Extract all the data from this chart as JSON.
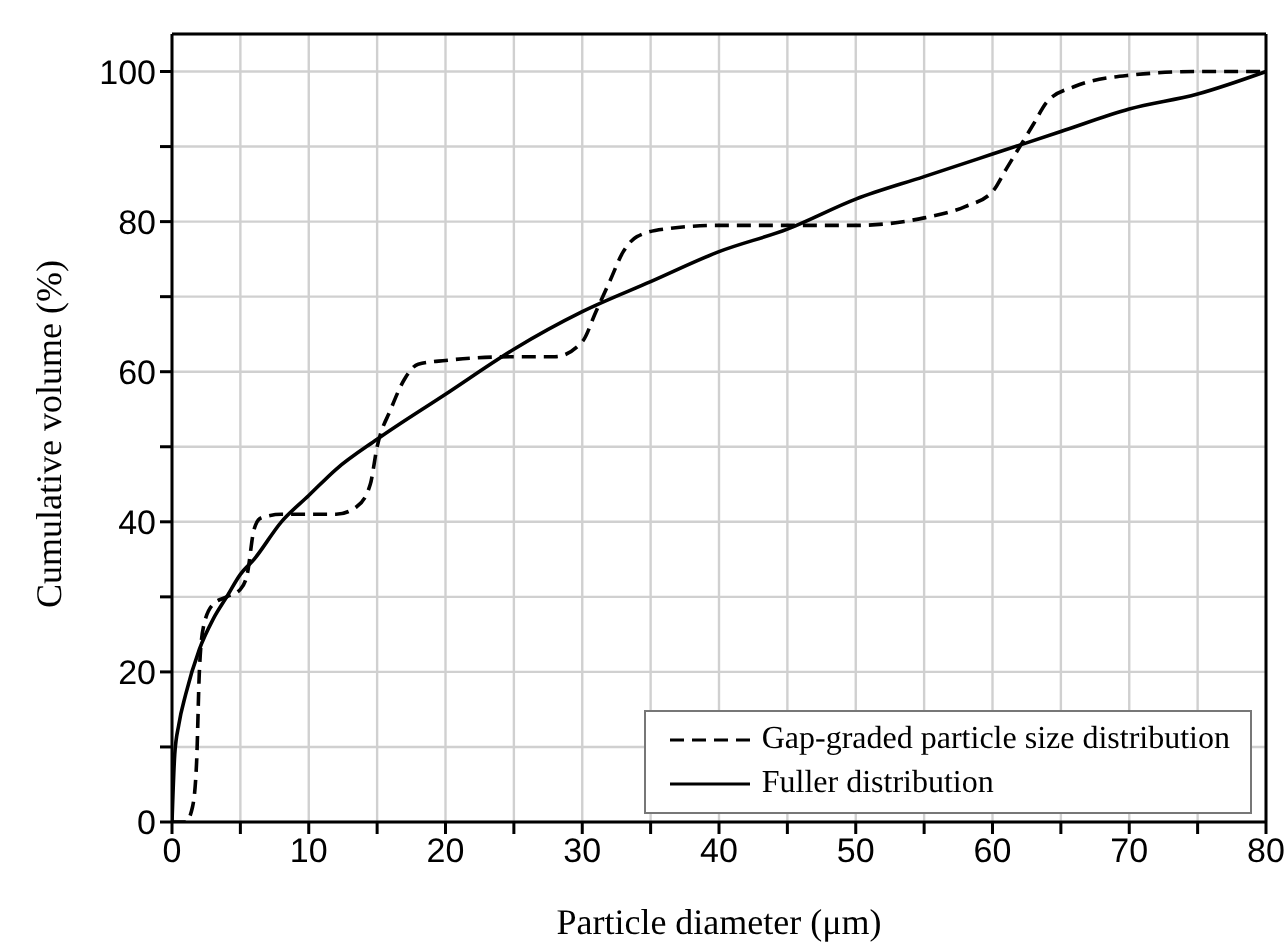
{
  "chart_data": {
    "type": "line",
    "xlabel": "Particle diameter (μm)",
    "ylabel": "Cumulative volume (%)",
    "xlim": [
      0,
      80
    ],
    "ylim": [
      0,
      105
    ],
    "xticks": [
      0,
      {
        "value": 5,
        "label": null
      },
      10,
      {
        "value": 15,
        "label": null
      },
      20,
      {
        "value": 25,
        "label": null
      },
      30,
      {
        "value": 35,
        "label": null
      },
      40,
      {
        "value": 45,
        "label": null
      },
      50,
      {
        "value": 55,
        "label": null
      },
      60,
      {
        "value": 65,
        "label": null
      },
      70,
      {
        "value": 75,
        "label": null
      },
      80
    ],
    "yticks": [
      0,
      {
        "value": 10,
        "label": null
      },
      20,
      {
        "value": 30,
        "label": null
      },
      40,
      {
        "value": 50,
        "label": null
      },
      60,
      {
        "value": 70,
        "label": null
      },
      80,
      {
        "value": 90,
        "label": null
      },
      100
    ],
    "grid": true,
    "legend": "bottom right",
    "marker": "none",
    "series": [
      {
        "name": "Gap-graded particle size distribution",
        "color": "#000000",
        "line_style": "dashed",
        "x": [
          0,
          1,
          1.5,
          1.8,
          2,
          2.3,
          3,
          4,
          5,
          5.5,
          6,
          6.5,
          8,
          10,
          12,
          13.5,
          14.5,
          15,
          16,
          17,
          18,
          20,
          25,
          28,
          30,
          31,
          32,
          33,
          34,
          36,
          40,
          45,
          50,
          55,
          58,
          60,
          61,
          62,
          63,
          64,
          66,
          70,
          75,
          80
        ],
        "values": [
          0,
          0,
          2,
          8,
          20,
          26,
          29,
          30,
          31,
          33,
          39,
          40.5,
          41,
          41,
          41,
          42,
          45,
          50,
          55,
          59,
          61,
          61.5,
          62,
          62,
          64,
          68,
          72,
          76,
          78,
          79,
          79.5,
          79.5,
          79.5,
          80.5,
          82,
          84,
          87,
          90,
          93,
          96,
          98,
          99.5,
          100,
          100
        ]
      },
      {
        "name": "Fuller distribution",
        "color": "#000000",
        "line_style": "solid",
        "x": [
          0,
          0.2,
          0.5,
          1,
          2,
          3,
          4,
          5,
          6,
          8,
          10,
          12,
          15,
          20,
          25,
          30,
          35,
          40,
          45,
          50,
          55,
          60,
          65,
          70,
          75,
          80
        ],
        "values": [
          0,
          9,
          13,
          17,
          23,
          27,
          30,
          33,
          35,
          40,
          43.5,
          47,
          51,
          57,
          63,
          68,
          72,
          76,
          79,
          83,
          86,
          89,
          92,
          95,
          97,
          100
        ]
      }
    ]
  }
}
